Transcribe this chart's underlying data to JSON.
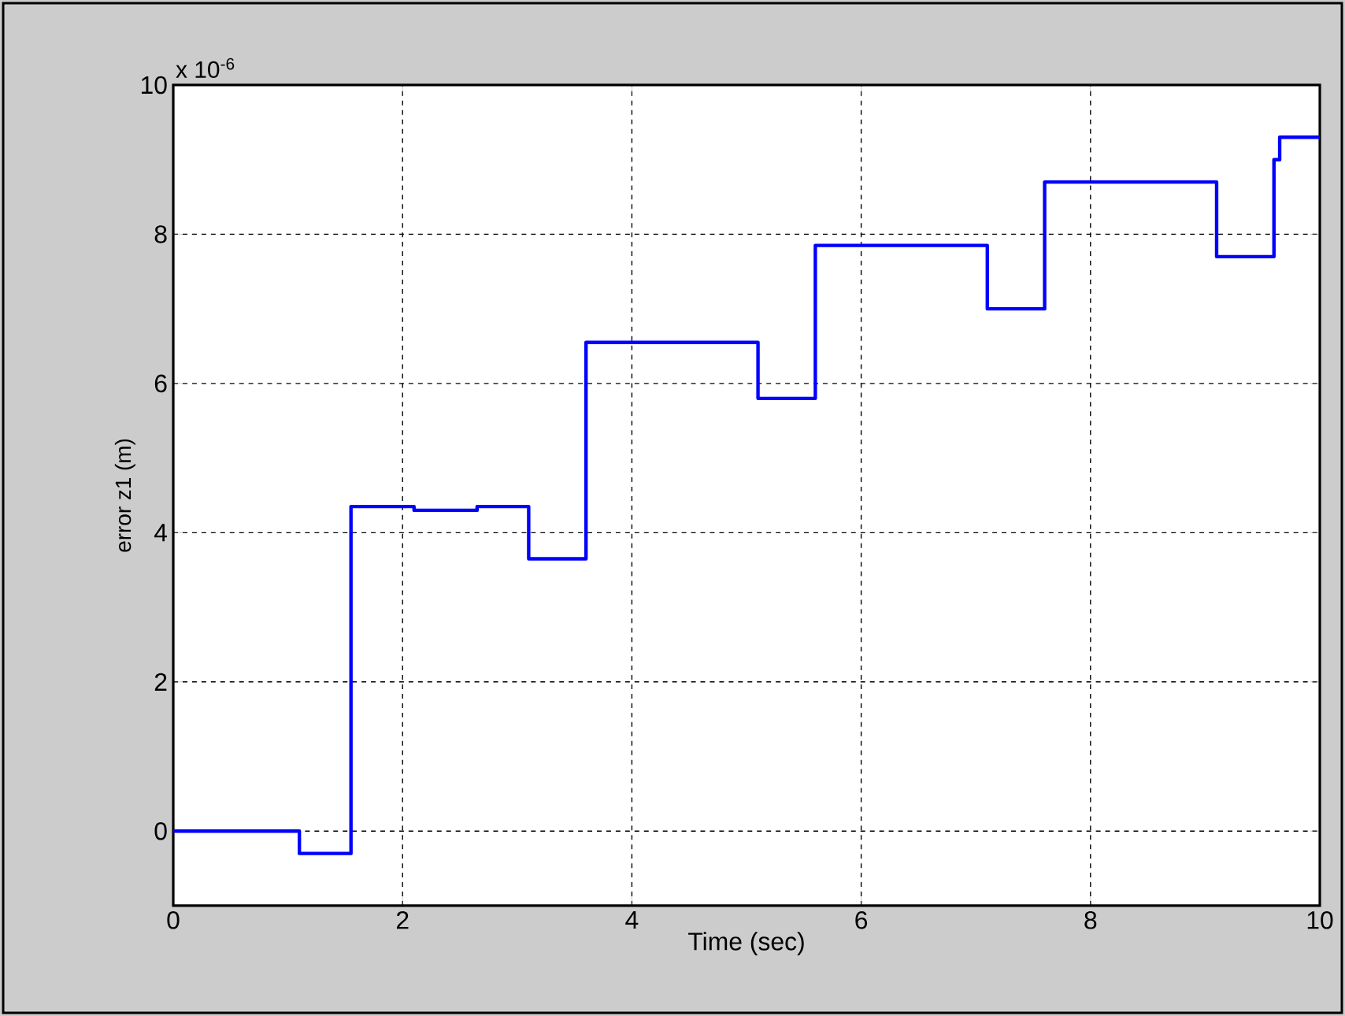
{
  "chart_data": {
    "type": "step",
    "xlabel": "Time (sec)",
    "ylabel": "error z1 (m)",
    "annotations": [
      "x 10$^{-6}$"
    ],
    "x": [
      0,
      1.1,
      1.55,
      2.1,
      2.65,
      3.1,
      3.6,
      5.1,
      5.6,
      7.1,
      7.6,
      9.1,
      9.6,
      9.65,
      10
    ],
    "series": [
      {
        "color": "#0000ff",
        "values": [
          0,
          -0.3,
          4.35,
          4.3,
          4.35,
          3.65,
          6.55,
          5.8,
          7.85,
          7.0,
          8.7,
          7.7,
          9.0,
          9.3,
          9.3
        ]
      }
    ],
    "xlim": [
      0,
      10
    ],
    "ylim": [
      -1,
      10
    ],
    "xticks": [
      0,
      2,
      4,
      6,
      8,
      10
    ],
    "yticks": [
      0,
      2,
      4,
      6,
      8,
      10
    ],
    "grid": true,
    "line_style": "solid",
    "marker": "none"
  }
}
